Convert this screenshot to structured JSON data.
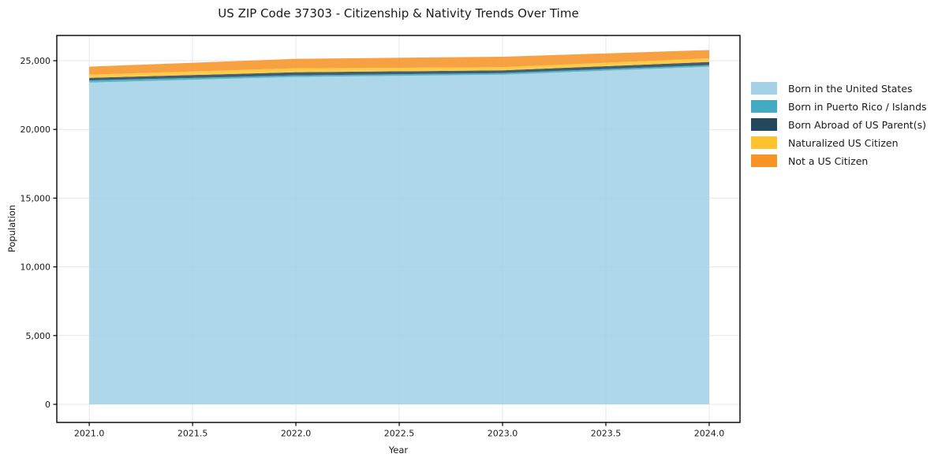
{
  "title": "US ZIP Code 37303 - Citizenship & Nativity Trends Over Time",
  "chart_data": {
    "type": "area",
    "stacked": true,
    "title": "US ZIP Code 37303 - Citizenship & Nativity Trends Over Time",
    "xlabel": "Year",
    "ylabel": "Population",
    "x": [
      2021,
      2022,
      2023,
      2024
    ],
    "series": [
      {
        "name": "Born in the United States",
        "color": "#a3d1e6",
        "values": [
          23410,
          23815,
          23985,
          24560
        ]
      },
      {
        "name": "Born in Puerto Rico / Islands",
        "color": "#41abc4",
        "values": [
          150,
          115,
          115,
          115
        ]
      },
      {
        "name": "Born Abroad of US Parent(s)",
        "color": "#25495c",
        "values": [
          190,
          230,
          195,
          230
        ]
      },
      {
        "name": "Naturalized US Citizen",
        "color": "#fdc42f",
        "values": [
          230,
          285,
          230,
          270
        ]
      },
      {
        "name": "Not a US Citizen",
        "color": "#f79428",
        "values": [
          585,
          690,
          760,
          600
        ]
      }
    ],
    "x_tick_values": [
      2021.0,
      2021.5,
      2022.0,
      2022.5,
      2023.0,
      2023.5,
      2024.0
    ],
    "x_tick_labels": [
      "2021.0",
      "2021.5",
      "2022.0",
      "2022.5",
      "2023.0",
      "2023.5",
      "2024.0"
    ],
    "y_tick_values": [
      0,
      5000,
      10000,
      15000,
      20000,
      25000
    ],
    "y_tick_labels": [
      "0",
      "5,000",
      "10,000",
      "15,000",
      "20,000",
      "25,000"
    ],
    "xlim": [
      2020.843,
      2024.149
    ],
    "ylim": [
      -1319,
      26834
    ],
    "grid": true,
    "legend_position": "right",
    "colors": {
      "grid": "#e7e7e7",
      "spine": "#000000",
      "background": "#ffffff",
      "area_opacity": 0.88
    }
  }
}
